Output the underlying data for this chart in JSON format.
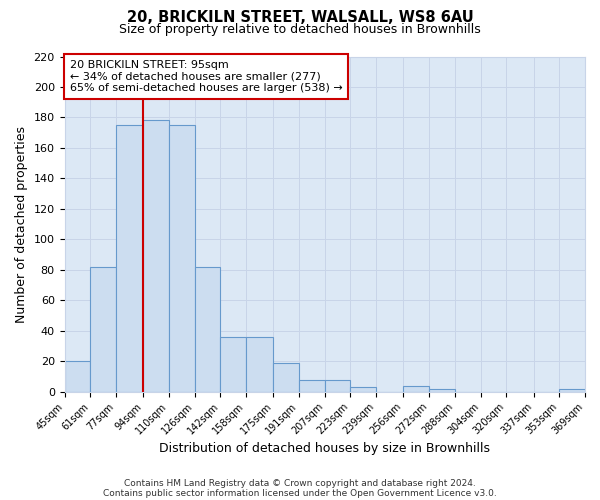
{
  "title": "20, BRICKILN STREET, WALSALL, WS8 6AU",
  "subtitle": "Size of property relative to detached houses in Brownhills",
  "xlabel": "Distribution of detached houses by size in Brownhills",
  "ylabel": "Number of detached properties",
  "bar_edges": [
    45,
    61,
    77,
    94,
    110,
    126,
    142,
    158,
    175,
    191,
    207,
    223,
    239,
    256,
    272,
    288,
    304,
    320,
    337,
    353,
    369
  ],
  "bar_heights": [
    20,
    82,
    175,
    178,
    175,
    82,
    36,
    36,
    19,
    8,
    8,
    3,
    0,
    4,
    2,
    0,
    0,
    0,
    0,
    2
  ],
  "bar_color": "#ccddf0",
  "bar_edge_color": "#6699cc",
  "grid_color": "#c8d4e8",
  "plot_bg_color": "#dce8f5",
  "fig_bg_color": "#ffffff",
  "vline_x": 94,
  "vline_color": "#cc0000",
  "annotation_title": "20 BRICKILN STREET: 95sqm",
  "annotation_line1": "← 34% of detached houses are smaller (277)",
  "annotation_line2": "65% of semi-detached houses are larger (538) →",
  "annotation_box_color": "#ffffff",
  "annotation_box_edge": "#cc0000",
  "tick_labels": [
    "45sqm",
    "61sqm",
    "77sqm",
    "94sqm",
    "110sqm",
    "126sqm",
    "142sqm",
    "158sqm",
    "175sqm",
    "191sqm",
    "207sqm",
    "223sqm",
    "239sqm",
    "256sqm",
    "272sqm",
    "288sqm",
    "304sqm",
    "320sqm",
    "337sqm",
    "353sqm",
    "369sqm"
  ],
  "ylim": [
    0,
    220
  ],
  "yticks": [
    0,
    20,
    40,
    60,
    80,
    100,
    120,
    140,
    160,
    180,
    200,
    220
  ],
  "footnote1": "Contains HM Land Registry data © Crown copyright and database right 2024.",
  "footnote2": "Contains public sector information licensed under the Open Government Licence v3.0."
}
